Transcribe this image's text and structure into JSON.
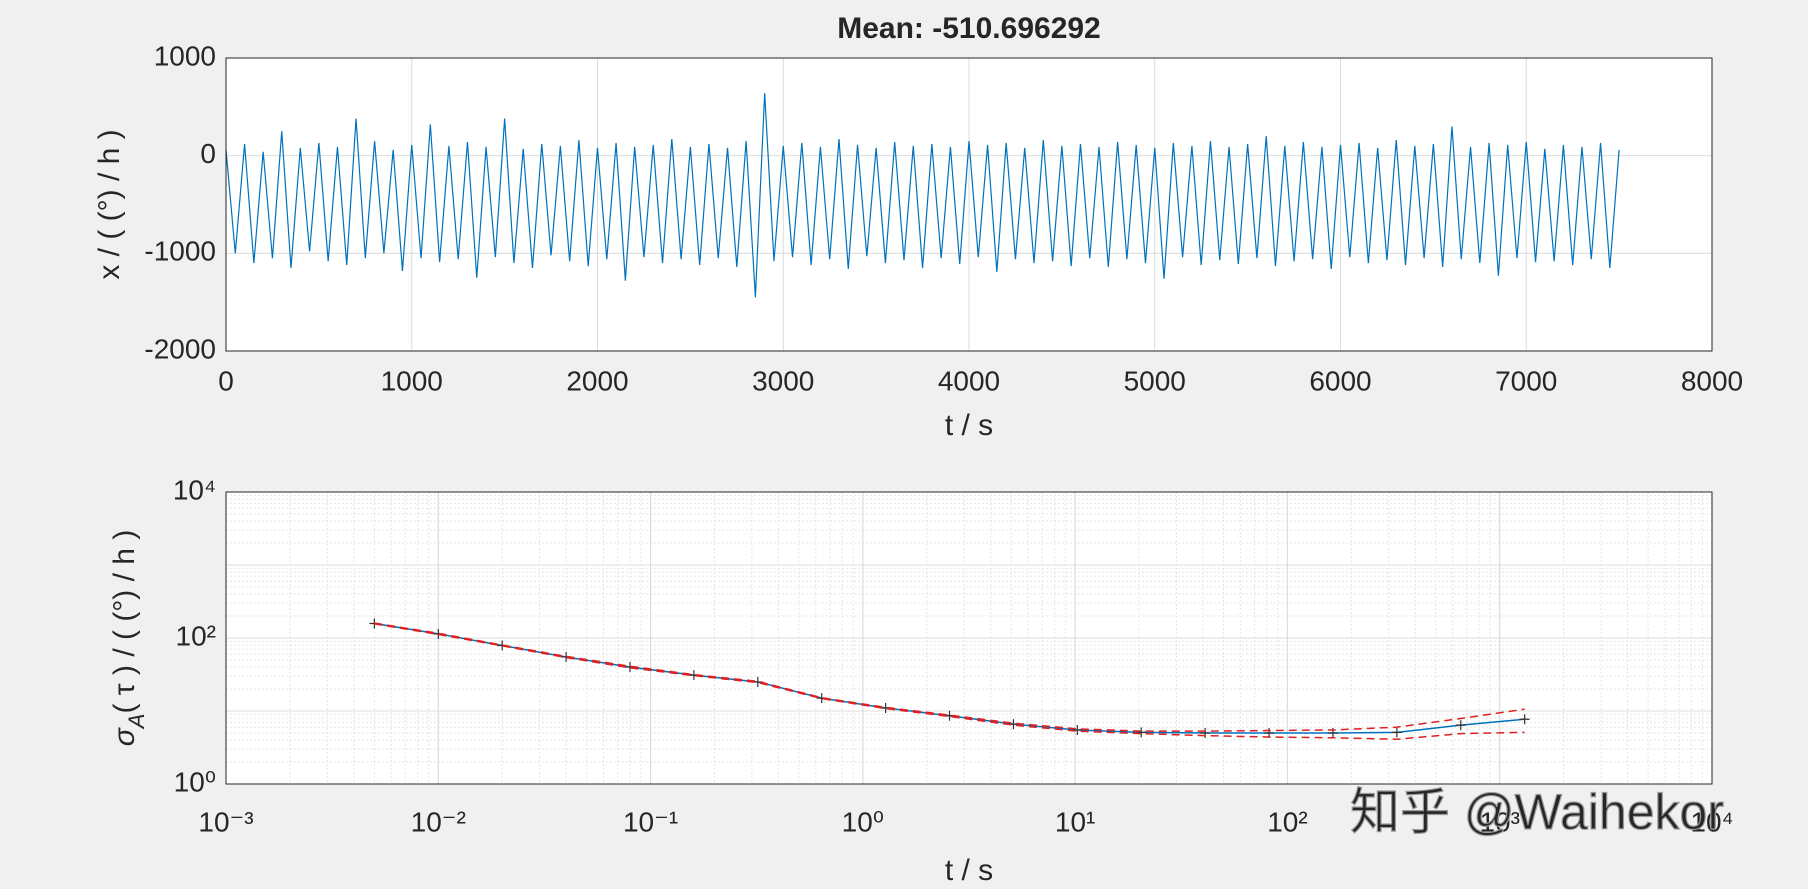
{
  "chart_data": [
    {
      "type": "line",
      "title": "Mean: -510.696292",
      "xlabel": "t / s",
      "ylabel": "x / ( (°) / h )",
      "x": [
        0,
        50,
        100,
        150,
        200,
        250,
        300,
        350,
        400,
        450,
        500,
        550,
        600,
        650,
        700,
        750,
        800,
        850,
        900,
        950,
        1000,
        1050,
        1100,
        1150,
        1200,
        1250,
        1300,
        1350,
        1400,
        1450,
        1500,
        1550,
        1600,
        1650,
        1700,
        1750,
        1800,
        1850,
        1900,
        1950,
        2000,
        2050,
        2100,
        2150,
        2200,
        2250,
        2300,
        2350,
        2400,
        2450,
        2500,
        2550,
        2600,
        2650,
        2700,
        2750,
        2800,
        2850,
        2900,
        2950,
        3000,
        3050,
        3100,
        3150,
        3200,
        3250,
        3300,
        3350,
        3400,
        3450,
        3500,
        3550,
        3600,
        3650,
        3700,
        3750,
        3800,
        3850,
        3900,
        3950,
        4000,
        4050,
        4100,
        4150,
        4200,
        4250,
        4300,
        4350,
        4400,
        4450,
        4500,
        4550,
        4600,
        4650,
        4700,
        4750,
        4800,
        4850,
        4900,
        4950,
        5000,
        5050,
        5100,
        5150,
        5200,
        5250,
        5300,
        5350,
        5400,
        5450,
        5500,
        5550,
        5600,
        5650,
        5700,
        5750,
        5800,
        5850,
        5900,
        5950,
        6000,
        6050,
        6100,
        6150,
        6200,
        6250,
        6300,
        6350,
        6400,
        6450,
        6500,
        6550,
        6600,
        6650,
        6700,
        6750,
        6800,
        6850,
        6900,
        6950,
        7000,
        7050,
        7100,
        7150,
        7200,
        7250,
        7300,
        7350,
        7400,
        7450,
        7500
      ],
      "values": [
        60,
        -1000,
        120,
        -1100,
        40,
        -1050,
        250,
        -1150,
        80,
        -980,
        130,
        -1080,
        90,
        -1120,
        380,
        -1050,
        150,
        -1000,
        60,
        -1180,
        110,
        -1050,
        320,
        -1090,
        100,
        -1060,
        140,
        -1250,
        90,
        -1040,
        380,
        -1100,
        70,
        -1150,
        120,
        -1020,
        100,
        -1080,
        160,
        -1130,
        80,
        -1060,
        130,
        -1280,
        90,
        -1040,
        110,
        -1100,
        170,
        -1060,
        90,
        -1120,
        120,
        -1050,
        80,
        -1140,
        150,
        -1450,
        640,
        -1080,
        100,
        -1040,
        130,
        -1120,
        90,
        -1060,
        170,
        -1160,
        110,
        -1030,
        80,
        -1100,
        140,
        -1070,
        100,
        -1150,
        120,
        -1050,
        90,
        -1110,
        150,
        -1040,
        110,
        -1190,
        130,
        -1060,
        80,
        -1100,
        160,
        -1080,
        100,
        -1130,
        120,
        -1050,
        90,
        -1140,
        140,
        -1060,
        110,
        -1100,
        80,
        -1260,
        130,
        -1040,
        100,
        -1120,
        150,
        -1070,
        90,
        -1110,
        120,
        -1050,
        200,
        -1130,
        100,
        -1080,
        140,
        -1060,
        90,
        -1160,
        110,
        -1040,
        130,
        -1100,
        80,
        -1070,
        160,
        -1120,
        100,
        -1050,
        120,
        -1140,
        300,
        -1060,
        90,
        -1100,
        130,
        -1230,
        110,
        -1050,
        140,
        -1090,
        70,
        -1080,
        110,
        -1120,
        90,
        -1060,
        130,
        -1150,
        60
      ],
      "color": "#0072bd",
      "xlim": [
        0,
        8000
      ],
      "xticks": [
        0,
        1000,
        2000,
        3000,
        4000,
        5000,
        6000,
        7000,
        8000
      ],
      "ylim": [
        -2000,
        1000
      ],
      "yticks": [
        -2000,
        -1000,
        0,
        1000
      ],
      "grid": true
    },
    {
      "type": "line",
      "xscale": "log",
      "yscale": "log",
      "xlabel": "t / s",
      "ylabel": {
        "symbol": "σ",
        "sub": "A",
        "rest": "( τ ) / ( (°) / h )"
      },
      "x": [
        0.005,
        0.01,
        0.02,
        0.04,
        0.08,
        0.16,
        0.32,
        0.64,
        1.28,
        2.56,
        5.12,
        10.24,
        20.48,
        40.96,
        81.92,
        163.84,
        327.68,
        655.36,
        1310.72
      ],
      "series": [
        {
          "color": "#0072bd",
          "marker": "+",
          "values": [
            158,
            114,
            79,
            55,
            40,
            31,
            25,
            15,
            11,
            8.6,
            6.6,
            5.5,
            5.1,
            5.0,
            5.0,
            5.0,
            5.1,
            6.4,
            7.7
          ]
        },
        {
          "color": "#e02020",
          "dash": true,
          "values": [
            160,
            116,
            80,
            56,
            41,
            31.5,
            25.5,
            15.2,
            11.2,
            8.8,
            6.8,
            5.7,
            5.3,
            5.3,
            5.4,
            5.5,
            6.0,
            7.9,
            10.6
          ]
        },
        {
          "color": "#e02020",
          "dash": true,
          "values": [
            156,
            112,
            78,
            54,
            39,
            30.5,
            24.5,
            14.8,
            10.8,
            8.4,
            6.4,
            5.3,
            4.9,
            4.6,
            4.4,
            4.3,
            4.1,
            4.9,
            5.1
          ]
        }
      ],
      "xlim": [
        0.001,
        10000
      ],
      "xticks": [
        {
          "value": 0.001,
          "label": "10⁻³"
        },
        {
          "value": 0.01,
          "label": "10⁻²"
        },
        {
          "value": 0.1,
          "label": "10⁻¹"
        },
        {
          "value": 1,
          "label": "10⁰"
        },
        {
          "value": 10,
          "label": "10¹"
        },
        {
          "value": 100,
          "label": "10²"
        },
        {
          "value": 1000,
          "label": "10³"
        },
        {
          "value": 10000,
          "label": "10⁴"
        }
      ],
      "ylim": [
        1,
        10000
      ],
      "yticks": [
        {
          "value": 1,
          "label": "10⁰"
        },
        {
          "value": 100,
          "label": "10²"
        },
        {
          "value": 10000,
          "label": "10⁴"
        }
      ],
      "grid": true,
      "minor_grid": true
    }
  ],
  "watermark": "知乎 @Waihekor"
}
